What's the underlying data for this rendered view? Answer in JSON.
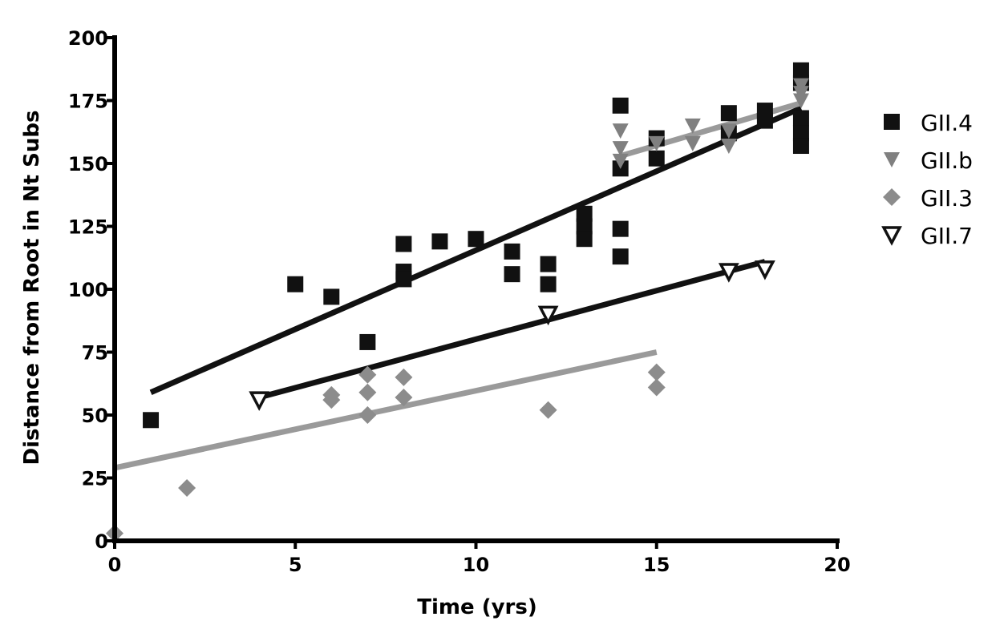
{
  "chart_data": {
    "type": "scatter",
    "xlabel": "Time (yrs)",
    "ylabel": "Distance from Root in Nt Subs",
    "xlim": [
      0,
      20
    ],
    "ylim": [
      0,
      200
    ],
    "x_ticks": [
      0,
      5,
      10,
      15,
      20
    ],
    "y_ticks": [
      0,
      25,
      50,
      75,
      100,
      125,
      150,
      175,
      200
    ],
    "legend_position": "right",
    "grid": false,
    "series": [
      {
        "name": "GII.4",
        "marker": "square",
        "color": "#111111",
        "points": [
          [
            1,
            48
          ],
          [
            5,
            102
          ],
          [
            6,
            97
          ],
          [
            7,
            79
          ],
          [
            8,
            118
          ],
          [
            8,
            107
          ],
          [
            8,
            104
          ],
          [
            9,
            119
          ],
          [
            10,
            120
          ],
          [
            11,
            115
          ],
          [
            11,
            106
          ],
          [
            12,
            110
          ],
          [
            12,
            102
          ],
          [
            13,
            130
          ],
          [
            13,
            125
          ],
          [
            13,
            120
          ],
          [
            14,
            173
          ],
          [
            14,
            148
          ],
          [
            14,
            124
          ],
          [
            14,
            113
          ],
          [
            15,
            160
          ],
          [
            15,
            152
          ],
          [
            17,
            170
          ],
          [
            17,
            162
          ],
          [
            18,
            171
          ],
          [
            18,
            167
          ],
          [
            19,
            187
          ],
          [
            19,
            182
          ],
          [
            19,
            168
          ],
          [
            19,
            162
          ],
          [
            19,
            157
          ]
        ],
        "trend": {
          "x": [
            1,
            19
          ],
          "y": [
            59,
            172
          ],
          "color": "#111111"
        }
      },
      {
        "name": "GII.b",
        "marker": "triangle-down",
        "color": "#808080",
        "points": [
          [
            14,
            163
          ],
          [
            14,
            156
          ],
          [
            14,
            151
          ],
          [
            15,
            158
          ],
          [
            16,
            165
          ],
          [
            16,
            158
          ],
          [
            17,
            163
          ],
          [
            17,
            157
          ],
          [
            19,
            181
          ],
          [
            19,
            178
          ],
          [
            19,
            175
          ]
        ],
        "trend": {
          "x": [
            14,
            19
          ],
          "y": [
            153,
            174
          ],
          "color": "#9a9a9a"
        }
      },
      {
        "name": "GII.3",
        "marker": "diamond",
        "color": "#8c8c8c",
        "points": [
          [
            0,
            3
          ],
          [
            2,
            21
          ],
          [
            6,
            58
          ],
          [
            6,
            56
          ],
          [
            7,
            66
          ],
          [
            7,
            59
          ],
          [
            7,
            50
          ],
          [
            8,
            65
          ],
          [
            8,
            57
          ],
          [
            12,
            52
          ],
          [
            15,
            67
          ],
          [
            15,
            61
          ]
        ],
        "trend": {
          "x": [
            0,
            15
          ],
          "y": [
            29,
            75
          ],
          "color": "#9a9a9a"
        }
      },
      {
        "name": "GII.7",
        "marker": "triangle-down-open",
        "color": "#111111",
        "points": [
          [
            4,
            56
          ],
          [
            12,
            90
          ],
          [
            17,
            107
          ],
          [
            18,
            108
          ]
        ],
        "trend": {
          "x": [
            4,
            18
          ],
          "y": [
            57,
            111
          ],
          "color": "#111111"
        }
      }
    ]
  }
}
